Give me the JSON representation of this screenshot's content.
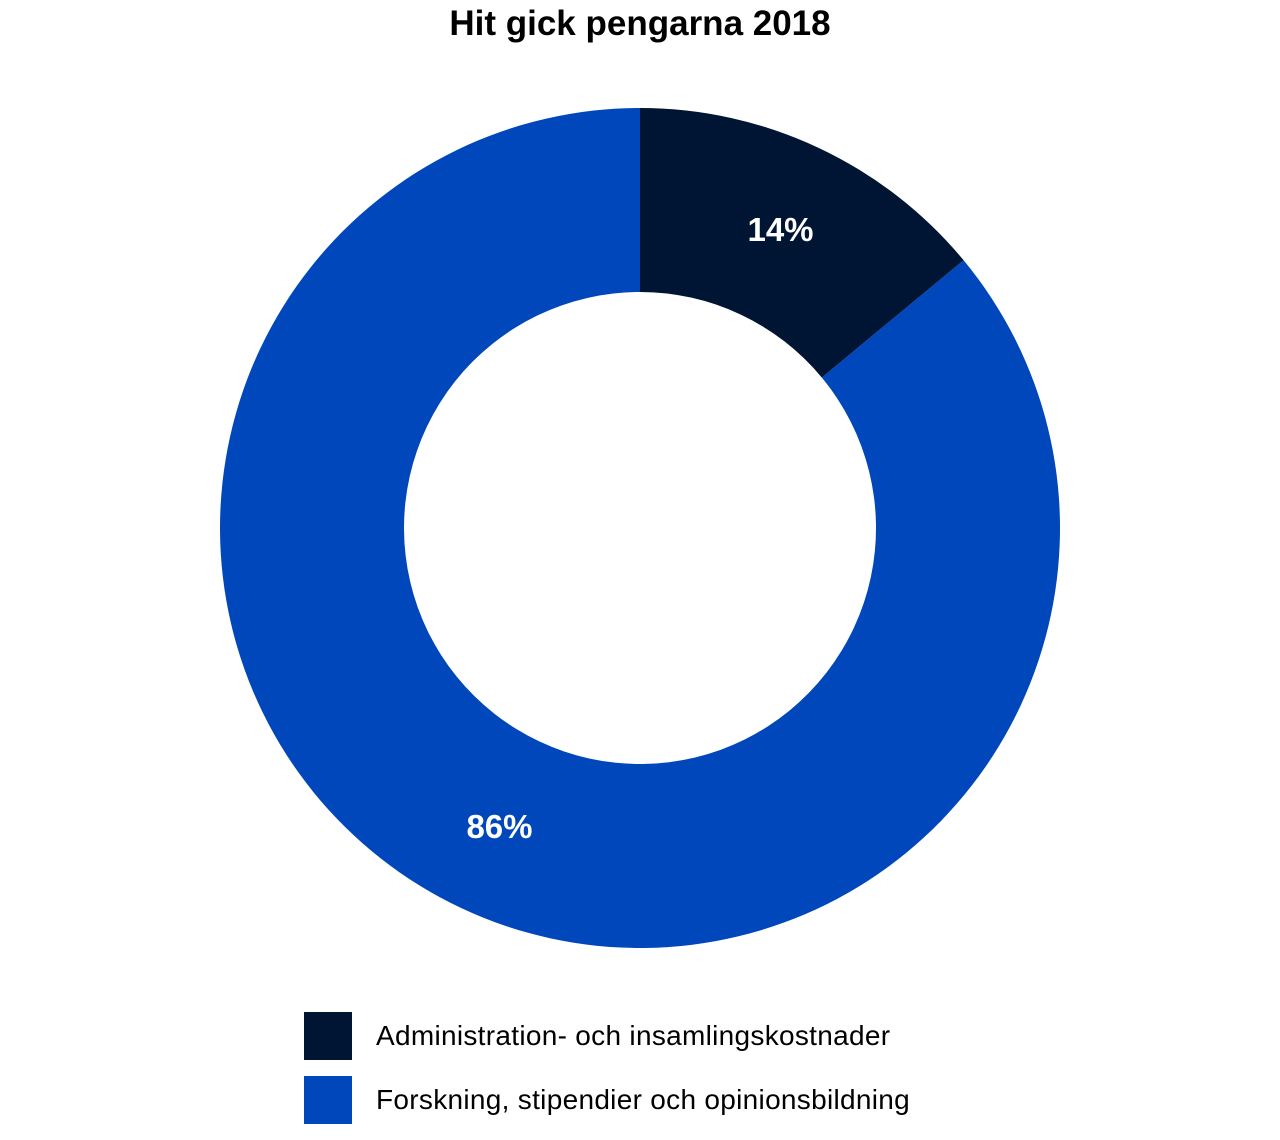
{
  "chart_data": {
    "type": "pie",
    "variant": "donut",
    "title": "Hit gick pengarna 2018",
    "categories": [
      "Administration- och insamlingskostnader",
      "Forskning, stipendier och opinionsbildning"
    ],
    "values": [
      14,
      86
    ],
    "value_labels": [
      "14%",
      "86%"
    ],
    "colors": [
      "#001433",
      "#0047bb"
    ],
    "legend": "bottom"
  }
}
